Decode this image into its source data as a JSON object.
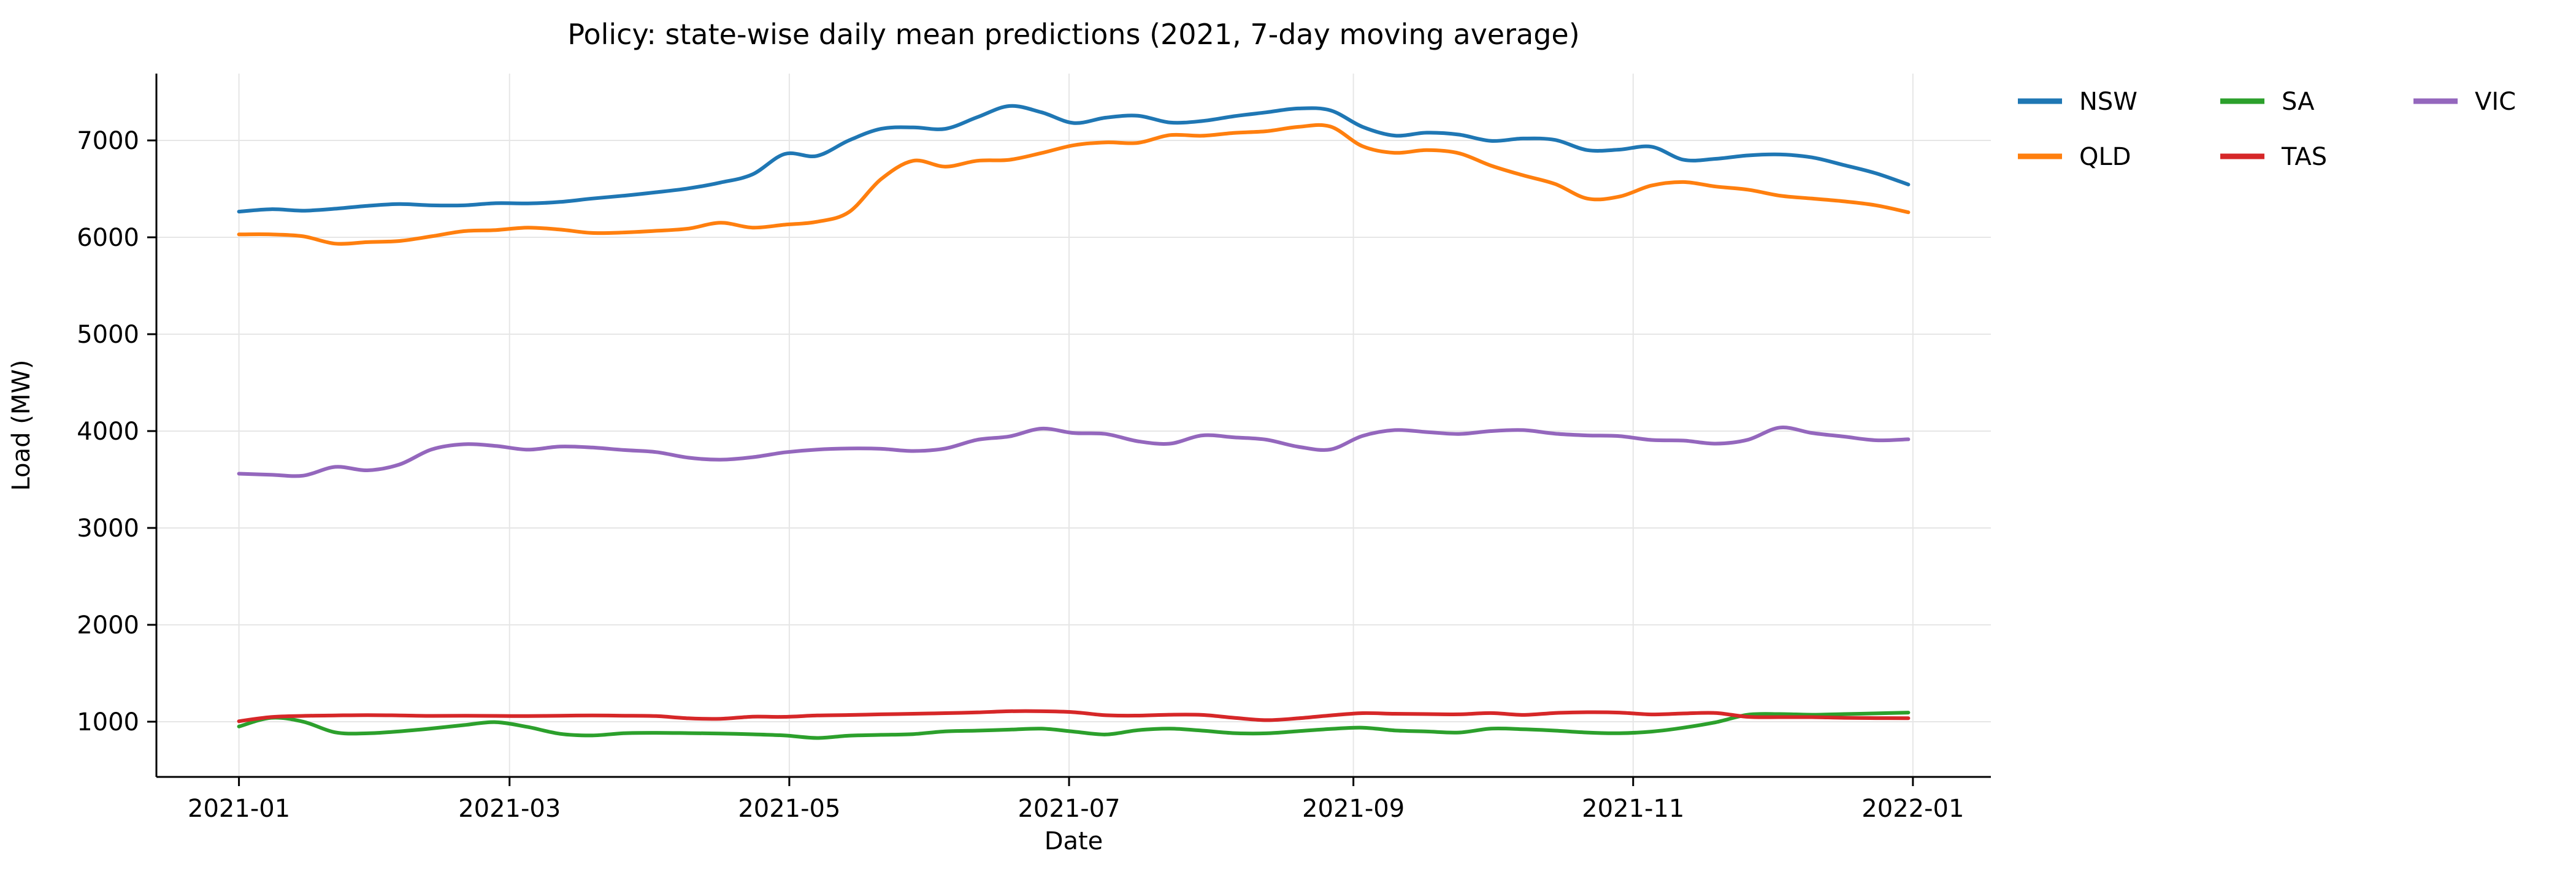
{
  "chart_data": {
    "type": "line",
    "title": "Policy: state-wise daily mean predictions (2021, 7-day moving average)",
    "xlabel": "Date",
    "ylabel": "Load (MW)",
    "x_tick_labels": [
      "2021-01",
      "2021-03",
      "2021-05",
      "2021-07",
      "2021-09",
      "2021-11",
      "2022-01"
    ],
    "x_tick_days": [
      0,
      59,
      120,
      181,
      243,
      304,
      365
    ],
    "y_tick_values": [
      1000,
      2000,
      3000,
      4000,
      5000,
      6000,
      7000
    ],
    "xlim_days": [
      -18,
      382
    ],
    "ylim": [
      430,
      7690
    ],
    "grid": true,
    "grid_color": "#e6e6e6",
    "spine_color": "#000000",
    "legend_position": "upper right, outside plot, 3 columns",
    "sample_interval_days": 7,
    "x_start_day": 0,
    "series": [
      {
        "name": "NSW",
        "color": "#1f77b4",
        "values": [
          6265,
          6290,
          6275,
          6295,
          6325,
          6343,
          6330,
          6330,
          6352,
          6350,
          6365,
          6400,
          6430,
          6465,
          6505,
          6565,
          6650,
          6860,
          6840,
          7000,
          7120,
          7135,
          7120,
          7240,
          7355,
          7290,
          7180,
          7235,
          7255,
          7185,
          7200,
          7250,
          7290,
          7330,
          7310,
          7140,
          7050,
          7080,
          7060,
          6995,
          7020,
          7005,
          6900,
          6905,
          6935,
          6800,
          6810,
          6845,
          6855,
          6825,
          6745,
          6660,
          6545
        ]
      },
      {
        "name": "QLD",
        "color": "#ff7f0e",
        "values": [
          6030,
          6030,
          6010,
          5935,
          5950,
          5962,
          6010,
          6063,
          6075,
          6100,
          6080,
          6045,
          6050,
          6067,
          6090,
          6150,
          6100,
          6130,
          6160,
          6260,
          6600,
          6790,
          6730,
          6790,
          6800,
          6870,
          6950,
          6980,
          6975,
          7055,
          7048,
          7078,
          7095,
          7140,
          7143,
          6940,
          6872,
          6900,
          6868,
          6740,
          6640,
          6550,
          6400,
          6420,
          6534,
          6570,
          6524,
          6492,
          6430,
          6400,
          6371,
          6330,
          6258
        ]
      },
      {
        "name": "SA",
        "color": "#2ca02c",
        "values": [
          950,
          1040,
          1000,
          890,
          880,
          900,
          930,
          965,
          995,
          945,
          875,
          858,
          881,
          885,
          882,
          878,
          870,
          858,
          832,
          856,
          864,
          872,
          900,
          908,
          918,
          928,
          898,
          868,
          912,
          928,
          908,
          882,
          880,
          902,
          925,
          938,
          910,
          899,
          888,
          928,
          922,
          908,
          888,
          881,
          898,
          938,
          994,
          1072,
          1079,
          1072,
          1079,
          1086,
          1094
        ]
      },
      {
        "name": "TAS",
        "color": "#d62728",
        "values": [
          1005,
          1048,
          1060,
          1065,
          1068,
          1065,
          1060,
          1062,
          1060,
          1058,
          1062,
          1064,
          1062,
          1058,
          1035,
          1030,
          1052,
          1050,
          1064,
          1069,
          1076,
          1082,
          1088,
          1096,
          1108,
          1108,
          1098,
          1067,
          1063,
          1072,
          1070,
          1040,
          1016,
          1035,
          1065,
          1088,
          1082,
          1079,
          1076,
          1089,
          1070,
          1090,
          1098,
          1094,
          1075,
          1085,
          1090,
          1050,
          1047,
          1047,
          1040,
          1037,
          1036
        ]
      },
      {
        "name": "VIC",
        "color": "#9467bd",
        "values": [
          3560,
          3549,
          3540,
          3630,
          3595,
          3655,
          3810,
          3864,
          3847,
          3808,
          3840,
          3830,
          3804,
          3783,
          3725,
          3705,
          3730,
          3780,
          3809,
          3820,
          3817,
          3794,
          3820,
          3910,
          3945,
          4025,
          3980,
          3970,
          3895,
          3870,
          3955,
          3935,
          3911,
          3838,
          3810,
          3950,
          4010,
          3990,
          3970,
          4000,
          4010,
          3973,
          3955,
          3948,
          3908,
          3902,
          3870,
          3910,
          4036,
          3980,
          3943,
          3905,
          3915
        ]
      }
    ]
  }
}
